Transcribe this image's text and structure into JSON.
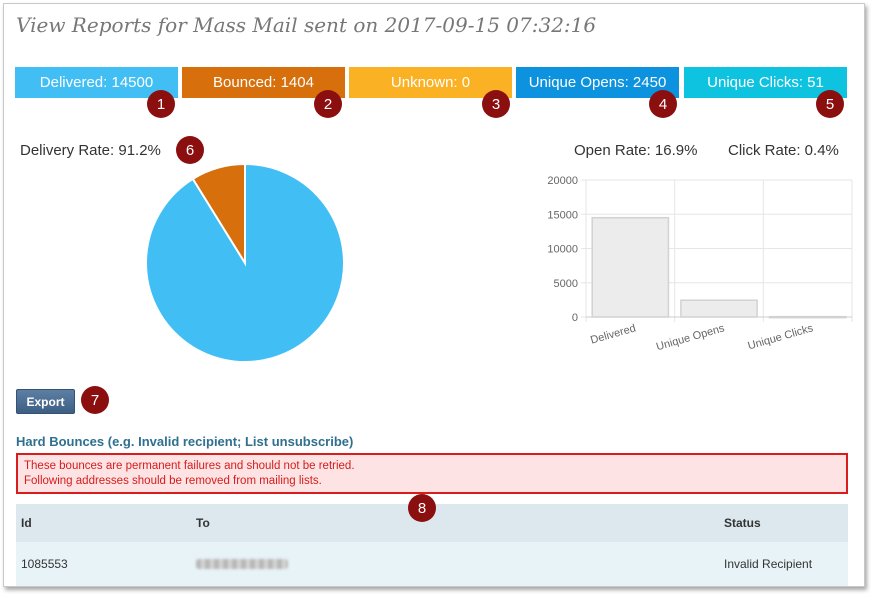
{
  "page": {
    "title": "View Reports for Mass Mail sent on 2017-09-15 07:32:16"
  },
  "stats": [
    {
      "label": "Delivered: 14500",
      "marker": "1",
      "color": "#41bff5"
    },
    {
      "label": "Bounced: 1404",
      "marker": "2",
      "color": "#d66f0c"
    },
    {
      "label": "Unknown: 0",
      "marker": "3",
      "color": "#fbb124"
    },
    {
      "label": "Unique Opens: 2450",
      "marker": "4",
      "color": "#0c92de"
    },
    {
      "label": "Unique Clicks: 51",
      "marker": "5",
      "color": "#0ec3e0"
    }
  ],
  "rates": {
    "delivery": "Delivery Rate: 91.2%",
    "delivery_marker": "6",
    "open": "Open Rate: 16.9%",
    "click": "Click Rate: 0.4%"
  },
  "chart_data": [
    {
      "type": "pie",
      "slices": [
        {
          "name": "Delivered",
          "value": 14500,
          "color": "#41bff5"
        },
        {
          "name": "Bounced",
          "value": 1404,
          "color": "#d66f0c"
        }
      ]
    },
    {
      "type": "bar",
      "categories": [
        "Delivered",
        "Unique Opens",
        "Unique Clicks"
      ],
      "values": [
        14500,
        2450,
        51
      ],
      "ylim": [
        0,
        20000
      ],
      "yticks": [
        "0",
        "5000",
        "10000",
        "15000",
        "20000"
      ],
      "grid": true
    }
  ],
  "export": {
    "label": "Export",
    "marker": "7"
  },
  "hard_bounces": {
    "title": "Hard Bounces (e.g. Invalid recipient; List unsubscribe)",
    "alert_line1": "These bounces are permanent failures and should not be retried.",
    "alert_line2": "Following addresses should be removed from mailing lists.",
    "marker": "8"
  },
  "table": {
    "headers": {
      "id": "Id",
      "to": "To",
      "status": "Status"
    },
    "rows": [
      {
        "id": "1085553",
        "to": "",
        "status": "Invalid Recipient"
      }
    ]
  }
}
